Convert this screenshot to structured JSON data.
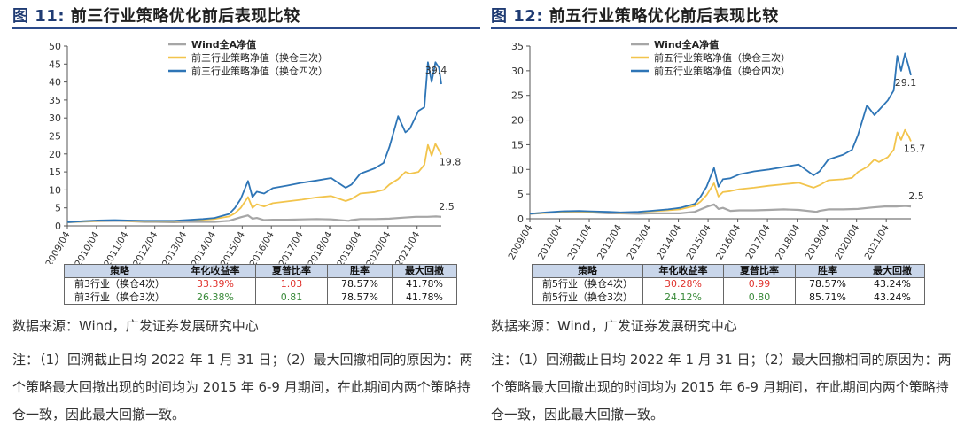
{
  "panels": [
    {
      "fig_label": "图 11:",
      "fig_title": "前三行业策略优化前后表现比较",
      "chart_data": {
        "type": "line",
        "ylim": [
          0,
          50
        ],
        "yticks": [
          0,
          5,
          10,
          15,
          20,
          25,
          30,
          35,
          40,
          45,
          50
        ],
        "xticks": [
          "2009/04",
          "2010/04",
          "2011/04",
          "2012/04",
          "2013/04",
          "2014/04",
          "2015/04",
          "2016/04",
          "2017/04",
          "2018/04",
          "2019/04",
          "2020/04",
          "2021/04"
        ],
        "xrange": [
          2009.25,
          2022.08
        ],
        "legend": [
          "Wind全A净值",
          "前三行业策略净值（换仓三次）",
          "前三行业策略净值（换仓四次）"
        ],
        "colors": [
          "#a6a6a6",
          "#f2c44c",
          "#2e75b6"
        ],
        "end_labels": [
          "2.5",
          "19.8",
          "39.4"
        ],
        "series": [
          {
            "name": "Wind全A净值",
            "x": [
              2009.25,
              2009.8,
              2010.3,
              2010.9,
              2011.3,
              2011.9,
              2012.3,
              2012.9,
              2013.3,
              2013.9,
              2014.3,
              2014.8,
              2015.0,
              2015.2,
              2015.45,
              2015.6,
              2015.75,
              2016.0,
              2016.3,
              2016.8,
              2017.3,
              2017.8,
              2018.3,
              2018.9,
              2019.0,
              2019.3,
              2019.8,
              2020.3,
              2020.8,
              2021.2,
              2021.6,
              2021.9,
              2022.08
            ],
            "y": [
              1.0,
              1.2,
              1.3,
              1.4,
              1.3,
              1.1,
              1.1,
              1.0,
              1.1,
              1.1,
              1.1,
              1.4,
              1.9,
              2.4,
              2.9,
              2.0,
              2.2,
              1.6,
              1.7,
              1.7,
              1.8,
              1.9,
              1.8,
              1.4,
              1.6,
              1.9,
              1.9,
              2.0,
              2.3,
              2.5,
              2.5,
              2.6,
              2.5
            ]
          },
          {
            "name": "前三行业策略净值（换仓三次）",
            "x": [
              2009.25,
              2009.8,
              2010.3,
              2010.9,
              2011.3,
              2011.9,
              2012.3,
              2012.9,
              2013.3,
              2013.9,
              2014.3,
              2014.8,
              2015.0,
              2015.2,
              2015.45,
              2015.6,
              2015.75,
              2016.0,
              2016.3,
              2016.8,
              2017.3,
              2017.8,
              2018.3,
              2018.8,
              2019.0,
              2019.3,
              2019.8,
              2020.1,
              2020.3,
              2020.6,
              2020.85,
              2021.0,
              2021.3,
              2021.5,
              2021.62,
              2021.75,
              2021.88,
              2022.0,
              2022.08
            ],
            "y": [
              1.0,
              1.2,
              1.4,
              1.5,
              1.4,
              1.3,
              1.3,
              1.3,
              1.5,
              1.7,
              1.9,
              2.6,
              3.5,
              5.0,
              8.0,
              5.0,
              6.0,
              5.4,
              6.3,
              6.8,
              7.3,
              7.9,
              8.3,
              6.9,
              7.5,
              9.0,
              9.4,
              10.0,
              11.5,
              13.0,
              15.0,
              14.5,
              15.0,
              17.0,
              22.5,
              19.5,
              22.8,
              21.0,
              19.8
            ]
          },
          {
            "name": "前三行业策略净值（换仓四次）",
            "x": [
              2009.25,
              2009.8,
              2010.3,
              2010.9,
              2011.3,
              2011.9,
              2012.3,
              2012.9,
              2013.3,
              2013.9,
              2014.3,
              2014.8,
              2015.0,
              2015.2,
              2015.45,
              2015.6,
              2015.75,
              2016.0,
              2016.3,
              2016.8,
              2017.3,
              2017.8,
              2018.3,
              2018.8,
              2019.0,
              2019.3,
              2019.8,
              2020.1,
              2020.3,
              2020.6,
              2020.85,
              2021.0,
              2021.3,
              2021.5,
              2021.62,
              2021.75,
              2021.88,
              2022.0,
              2022.08
            ],
            "y": [
              1.0,
              1.3,
              1.5,
              1.6,
              1.5,
              1.4,
              1.4,
              1.4,
              1.6,
              1.9,
              2.2,
              3.3,
              5.0,
              7.5,
              12.5,
              8.0,
              9.5,
              9.0,
              10.5,
              11.2,
              12.0,
              12.6,
              13.3,
              10.6,
              11.5,
              14.5,
              16.0,
              17.5,
              22.0,
              30.5,
              26.0,
              27.0,
              32.0,
              33.0,
              45.5,
              40.0,
              45.5,
              44.0,
              39.4
            ]
          }
        ]
      },
      "table": {
        "headers": [
          "策略",
          "年化收益率",
          "夏普比率",
          "胜率",
          "最大回撤"
        ],
        "rows": [
          [
            "前3行业（换仓4次）",
            "33.39%",
            "1.03",
            "78.57%",
            "41.78%"
          ],
          [
            "前3行业（换仓3次）",
            "26.38%",
            "0.81",
            "78.57%",
            "41.78%"
          ]
        ],
        "cell_colors": [
          [
            "",
            "#e0342e",
            "#e0342e",
            "",
            ""
          ],
          [
            "",
            "#3a8a3a",
            "#3a8a3a",
            "",
            ""
          ]
        ]
      },
      "source": "数据来源：Wind，广发证券发展研究中心",
      "note": "注：（1）回溯截止日均 2022 年 1 月 31 日；（2）最大回撤相同的原因为：两个策略最大回撤出现的时间均为 2015 年 6-9 月期间，在此期间内两个策略持仓一致，因此最大回撤一致。"
    },
    {
      "fig_label": "图 12:",
      "fig_title": "前五行业策略优化前后表现比较",
      "chart_data": {
        "type": "line",
        "ylim": [
          0,
          35
        ],
        "yticks": [
          0,
          5,
          10,
          15,
          20,
          25,
          30,
          35
        ],
        "xticks": [
          "2009/04",
          "2010/04",
          "2011/04",
          "2012/04",
          "2013/04",
          "2014/04",
          "2015/04",
          "2016/04",
          "2017/04",
          "2018/04",
          "2019/04",
          "2020/04",
          "2021/04"
        ],
        "xrange": [
          2009.25,
          2022.08
        ],
        "legend": [
          "Wind全A净值",
          "前五行业策略净值（换仓三次）",
          "前五行业策略净值（换仓四次）"
        ],
        "colors": [
          "#a6a6a6",
          "#f2c44c",
          "#2e75b6"
        ],
        "end_labels": [
          "2.5",
          "15.7",
          "29.1"
        ],
        "series": [
          {
            "name": "Wind全A净值",
            "x": [
              2009.25,
              2009.8,
              2010.3,
              2010.9,
              2011.3,
              2011.9,
              2012.3,
              2012.9,
              2013.3,
              2013.9,
              2014.3,
              2014.8,
              2015.0,
              2015.2,
              2015.45,
              2015.6,
              2015.75,
              2016.0,
              2016.3,
              2016.8,
              2017.3,
              2017.8,
              2018.3,
              2018.9,
              2019.0,
              2019.3,
              2019.8,
              2020.3,
              2020.8,
              2021.2,
              2021.6,
              2021.9,
              2022.08
            ],
            "y": [
              1.0,
              1.2,
              1.3,
              1.4,
              1.3,
              1.1,
              1.1,
              1.0,
              1.1,
              1.1,
              1.1,
              1.4,
              1.9,
              2.4,
              2.9,
              2.0,
              2.2,
              1.6,
              1.7,
              1.7,
              1.8,
              1.9,
              1.8,
              1.4,
              1.6,
              1.9,
              1.9,
              2.0,
              2.3,
              2.5,
              2.5,
              2.6,
              2.5
            ]
          },
          {
            "name": "前五行业策略净值（换仓三次）",
            "x": [
              2009.25,
              2009.8,
              2010.3,
              2010.9,
              2011.3,
              2011.9,
              2012.3,
              2012.9,
              2013.3,
              2013.9,
              2014.3,
              2014.8,
              2015.0,
              2015.2,
              2015.45,
              2015.6,
              2015.75,
              2016.0,
              2016.3,
              2016.8,
              2017.3,
              2017.8,
              2018.3,
              2018.8,
              2019.0,
              2019.3,
              2019.8,
              2020.1,
              2020.3,
              2020.6,
              2020.85,
              2021.0,
              2021.3,
              2021.5,
              2021.62,
              2021.75,
              2021.88,
              2022.0,
              2022.08
            ],
            "y": [
              1.0,
              1.2,
              1.4,
              1.5,
              1.4,
              1.3,
              1.2,
              1.3,
              1.5,
              1.7,
              1.9,
              2.6,
              3.5,
              4.8,
              7.2,
              4.5,
              5.4,
              5.6,
              6.0,
              6.3,
              6.7,
              7.0,
              7.3,
              6.3,
              6.8,
              7.8,
              8.0,
              8.3,
              9.5,
              10.5,
              12.0,
              11.5,
              12.5,
              14.0,
              17.5,
              16.0,
              18.0,
              16.8,
              15.7
            ]
          },
          {
            "name": "前五行业策略净值（换仓四次）",
            "x": [
              2009.25,
              2009.8,
              2010.3,
              2010.9,
              2011.3,
              2011.9,
              2012.3,
              2012.9,
              2013.3,
              2013.9,
              2014.3,
              2014.8,
              2015.0,
              2015.2,
              2015.45,
              2015.6,
              2015.75,
              2016.0,
              2016.3,
              2016.8,
              2017.3,
              2017.8,
              2018.3,
              2018.8,
              2019.0,
              2019.3,
              2019.8,
              2020.1,
              2020.3,
              2020.6,
              2020.85,
              2021.0,
              2021.3,
              2021.5,
              2021.62,
              2021.75,
              2021.88,
              2022.0,
              2022.08
            ],
            "y": [
              1.0,
              1.3,
              1.5,
              1.6,
              1.5,
              1.4,
              1.3,
              1.4,
              1.6,
              1.9,
              2.2,
              3.0,
              4.5,
              6.5,
              10.3,
              6.5,
              8.0,
              8.2,
              9.0,
              9.6,
              10.0,
              10.5,
              11.0,
              8.8,
              9.6,
              12.0,
              13.0,
              14.0,
              17.0,
              23.0,
              21.0,
              22.0,
              24.0,
              26.0,
              33.0,
              30.0,
              33.5,
              31.0,
              29.1
            ]
          }
        ]
      },
      "table": {
        "headers": [
          "策略",
          "年化收益率",
          "夏普比率",
          "胜率",
          "最大回撤"
        ],
        "rows": [
          [
            "前5行业（换仓4次）",
            "30.28%",
            "0.99",
            "78.57%",
            "43.24%"
          ],
          [
            "前5行业（换仓3次）",
            "24.12%",
            "0.80",
            "85.71%",
            "43.24%"
          ]
        ],
        "cell_colors": [
          [
            "",
            "#e0342e",
            "#e0342e",
            "",
            ""
          ],
          [
            "",
            "#3a8a3a",
            "#3a8a3a",
            "",
            ""
          ]
        ]
      },
      "source": "数据来源：Wind，广发证券发展研究中心",
      "note": "注：（1）回溯截止日均 2022 年 1 月 31 日；（2）最大回撤相同的原因为：两个策略最大回撤出现的时间均为 2015 年 6-9 月期间，在此期间内两个策略持仓一致，因此最大回撤一致。"
    }
  ]
}
